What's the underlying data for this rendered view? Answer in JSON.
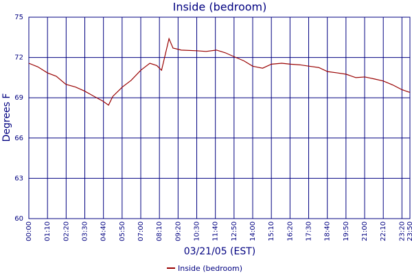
{
  "chart_data": {
    "type": "line",
    "title": "Inside (bedroom)",
    "x_label": "03/21/05 (EST)",
    "y_label": "Degrees F",
    "x": [
      0,
      34,
      70,
      103,
      139,
      175,
      209,
      245,
      278,
      299,
      315,
      351,
      384,
      420,
      454,
      480,
      498,
      526,
      541,
      572,
      629,
      665,
      704,
      737,
      771,
      807,
      840,
      877,
      910,
      949,
      982,
      1018,
      1052,
      1088,
      1121,
      1158,
      1191,
      1227,
      1261,
      1297,
      1330,
      1366,
      1400,
      1430
    ],
    "series": [
      {
        "name": "Inside (bedroom)",
        "color": "#990000",
        "values": [
          71.57,
          71.3,
          70.85,
          70.6,
          70.0,
          69.8,
          69.5,
          69.1,
          68.75,
          68.45,
          69.1,
          69.8,
          70.3,
          71.05,
          71.57,
          71.4,
          71.05,
          73.4,
          72.7,
          72.55,
          72.5,
          72.45,
          72.55,
          72.35,
          72.05,
          71.75,
          71.35,
          71.2,
          71.5,
          71.57,
          71.5,
          71.45,
          71.35,
          71.25,
          70.95,
          70.85,
          70.75,
          70.5,
          70.55,
          70.4,
          70.25,
          69.95,
          69.6,
          69.4
        ]
      }
    ],
    "xlim": [
      0,
      1430
    ],
    "ylim": [
      60,
      75
    ],
    "xticks": [
      {
        "value": 0,
        "label": "00:00"
      },
      {
        "value": 70,
        "label": "01:10"
      },
      {
        "value": 140,
        "label": "02:20"
      },
      {
        "value": 210,
        "label": "03:30"
      },
      {
        "value": 280,
        "label": "04:40"
      },
      {
        "value": 350,
        "label": "05:50"
      },
      {
        "value": 420,
        "label": "07:00"
      },
      {
        "value": 490,
        "label": "08:10"
      },
      {
        "value": 560,
        "label": "09:20"
      },
      {
        "value": 630,
        "label": "10:30"
      },
      {
        "value": 700,
        "label": "11:40"
      },
      {
        "value": 770,
        "label": "12:50"
      },
      {
        "value": 840,
        "label": "14:00"
      },
      {
        "value": 910,
        "label": "15:10"
      },
      {
        "value": 980,
        "label": "16:20"
      },
      {
        "value": 1050,
        "label": "17:30"
      },
      {
        "value": 1120,
        "label": "18:40"
      },
      {
        "value": 1190,
        "label": "19:50"
      },
      {
        "value": 1260,
        "label": "21:00"
      },
      {
        "value": 1330,
        "label": "22:10"
      },
      {
        "value": 1400,
        "label": "23:20"
      },
      {
        "value": 1430,
        "label": "23:50"
      }
    ],
    "yticks": [
      60,
      63,
      66,
      69,
      72,
      75
    ],
    "grid": true,
    "grid_color": "#000080",
    "legend": "bottom"
  }
}
